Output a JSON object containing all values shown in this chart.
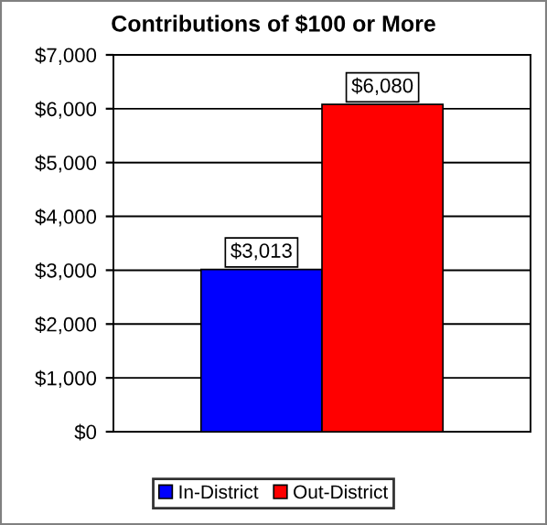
{
  "chart_data": {
    "type": "bar",
    "title": "Contributions of $100 or More",
    "categories": [
      null
    ],
    "series": [
      {
        "name": "In-District",
        "color": "#0000ff",
        "values": [
          3013
        ],
        "value_labels": [
          "$3,013"
        ]
      },
      {
        "name": "Out-District",
        "color": "#ff0000",
        "values": [
          6080
        ],
        "value_labels": [
          "$6,080"
        ]
      }
    ],
    "ylim": [
      0,
      7000
    ],
    "yticks": [
      {
        "value": 0,
        "label": "$0"
      },
      {
        "value": 1000,
        "label": "$1,000"
      },
      {
        "value": 2000,
        "label": "$2,000"
      },
      {
        "value": 3000,
        "label": "$3,000"
      },
      {
        "value": 4000,
        "label": "$4,000"
      },
      {
        "value": 5000,
        "label": "$5,000"
      },
      {
        "value": 6000,
        "label": "$6,000"
      },
      {
        "value": 7000,
        "label": "$7,000"
      }
    ],
    "grid": "y",
    "legend": "bottom"
  }
}
